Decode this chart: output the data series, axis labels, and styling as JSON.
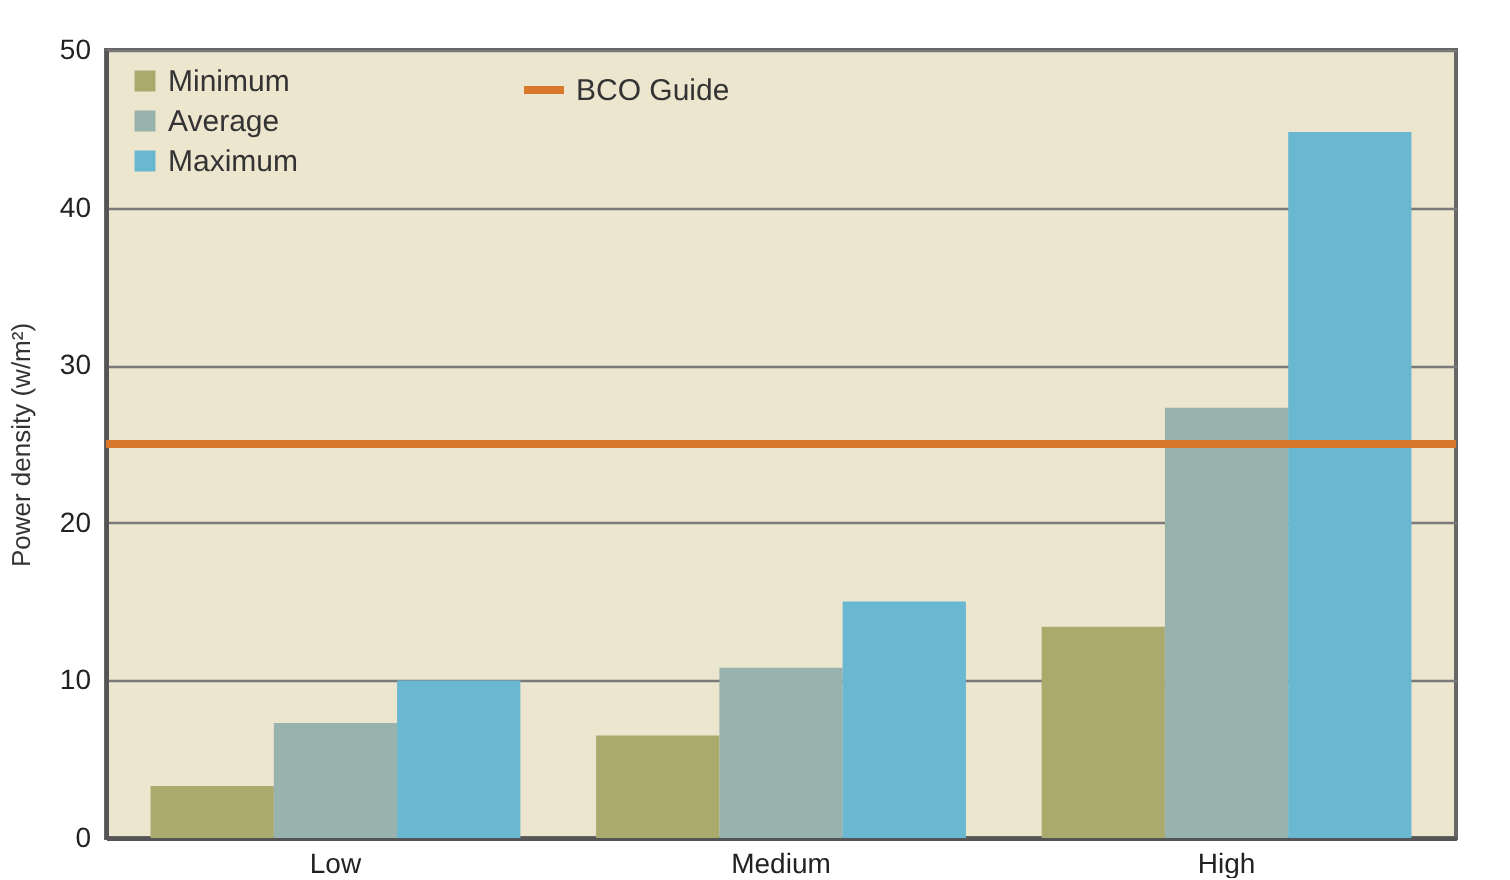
{
  "chart_data": {
    "type": "bar",
    "ylabel": "Power density (w/m²)",
    "categories": [
      "Low",
      "Medium",
      "High"
    ],
    "series": [
      {
        "name": "Minimum",
        "color": "#aaaa6c",
        "values": [
          3.3,
          6.5,
          13.4
        ]
      },
      {
        "name": "Average",
        "color": "#98b2ae",
        "values": [
          7.3,
          10.8,
          27.3
        ]
      },
      {
        "name": "Maximum",
        "color": "#69b7d1",
        "values": [
          10,
          15,
          44.8
        ]
      }
    ],
    "ylim": [
      0,
      50
    ],
    "yticks": [
      0,
      10,
      20,
      30,
      40,
      50
    ],
    "grid": "y",
    "legend": "top left",
    "ref_lines": [
      {
        "axis": "y",
        "value": 25,
        "label": "BCO Guide",
        "color": "#d9782a"
      }
    ]
  }
}
